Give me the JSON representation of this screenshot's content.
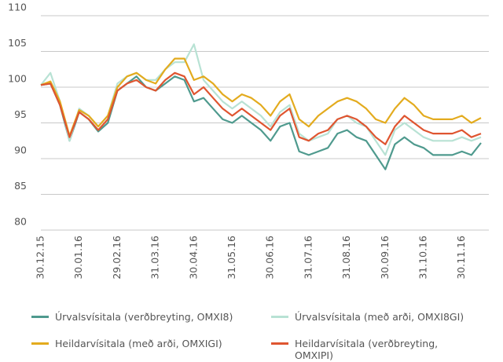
{
  "chart_data": {
    "type": "line",
    "categories": [
      "30.12.15",
      null,
      null,
      null,
      "30.01.16",
      null,
      null,
      null,
      "29.02.16",
      null,
      null,
      null,
      "31.03.16",
      null,
      null,
      null,
      "30.04.16",
      null,
      null,
      null,
      "31.05.16",
      null,
      null,
      null,
      "30.06.16",
      null,
      null,
      null,
      "31.07.16",
      null,
      null,
      null,
      "31.08.16",
      null,
      null,
      null,
      "30.09.16",
      null,
      null,
      null,
      "31.10.16",
      null,
      null,
      null,
      "30.11.16",
      null,
      null
    ],
    "series": [
      {
        "name": "Úrvalsvísitala (verðbreyting, OMXI8)",
        "color": "#4f9a8e",
        "values": [
          100.3,
          100.5,
          97.5,
          92.5,
          96.5,
          95.5,
          93.8,
          95,
          99.5,
          100.5,
          101.5,
          100,
          99.5,
          100.5,
          101.5,
          101,
          98,
          98.5,
          97,
          95.5,
          95,
          96,
          95,
          94,
          92.5,
          94.5,
          95,
          91,
          90.5,
          91,
          91.5,
          93.5,
          94,
          93,
          92.5,
          90.5,
          88.5,
          92,
          93,
          92,
          91.5,
          90.5,
          90.5,
          90.5,
          91,
          90.5,
          92.2
        ]
      },
      {
        "name": "Úrvalsvísitala (með arði, OMXI8GI)",
        "color": "#b8e2d4",
        "values": [
          100.3,
          102,
          98,
          92.5,
          97,
          96,
          94.5,
          96,
          100.5,
          101.5,
          102,
          101,
          101,
          102.5,
          103.5,
          103.5,
          106,
          101,
          99.5,
          98,
          97,
          98,
          97,
          96,
          94.5,
          96.5,
          97.5,
          93.5,
          92.5,
          93,
          93.5,
          95.5,
          96,
          95,
          94.5,
          92.5,
          90.5,
          94,
          95,
          94,
          93,
          92.5,
          92.5,
          92.5,
          93,
          92.5,
          93
        ]
      },
      {
        "name": "Heildarvísitala (með arði, OMXIGI)",
        "color": "#e3ab1e",
        "values": [
          100.3,
          100.8,
          98,
          93.2,
          96.8,
          96,
          94.5,
          96,
          100,
          101.5,
          102,
          101,
          100.5,
          102.5,
          104,
          104,
          101,
          101.5,
          100.5,
          99,
          98,
          99,
          98.5,
          97.5,
          96,
          98,
          99,
          95.5,
          94.5,
          96,
          97,
          98,
          98.5,
          98,
          97,
          95.5,
          95,
          97,
          98.5,
          97.5,
          96,
          95.5,
          95.5,
          95.5,
          96,
          95,
          95.7
        ]
      },
      {
        "name": "Heildarvísitala (verðbreyting, OMXIPI)",
        "color": "#df5530",
        "values": [
          100.3,
          100.5,
          97.5,
          93,
          96.5,
          95.5,
          94,
          95.5,
          99.5,
          100.5,
          101,
          100,
          99.5,
          101,
          102,
          101.5,
          99,
          100,
          98.5,
          97,
          96,
          97,
          96,
          95,
          94,
          96,
          97,
          93,
          92.5,
          93.5,
          94,
          95.5,
          96,
          95.5,
          94.5,
          93,
          92,
          94.5,
          96,
          95,
          94,
          93.5,
          93.5,
          93.5,
          94,
          93,
          93.5
        ]
      }
    ],
    "ylim": [
      80,
      110
    ],
    "yticks": [
      80,
      85,
      90,
      95,
      100,
      105,
      110
    ],
    "grid": true
  }
}
